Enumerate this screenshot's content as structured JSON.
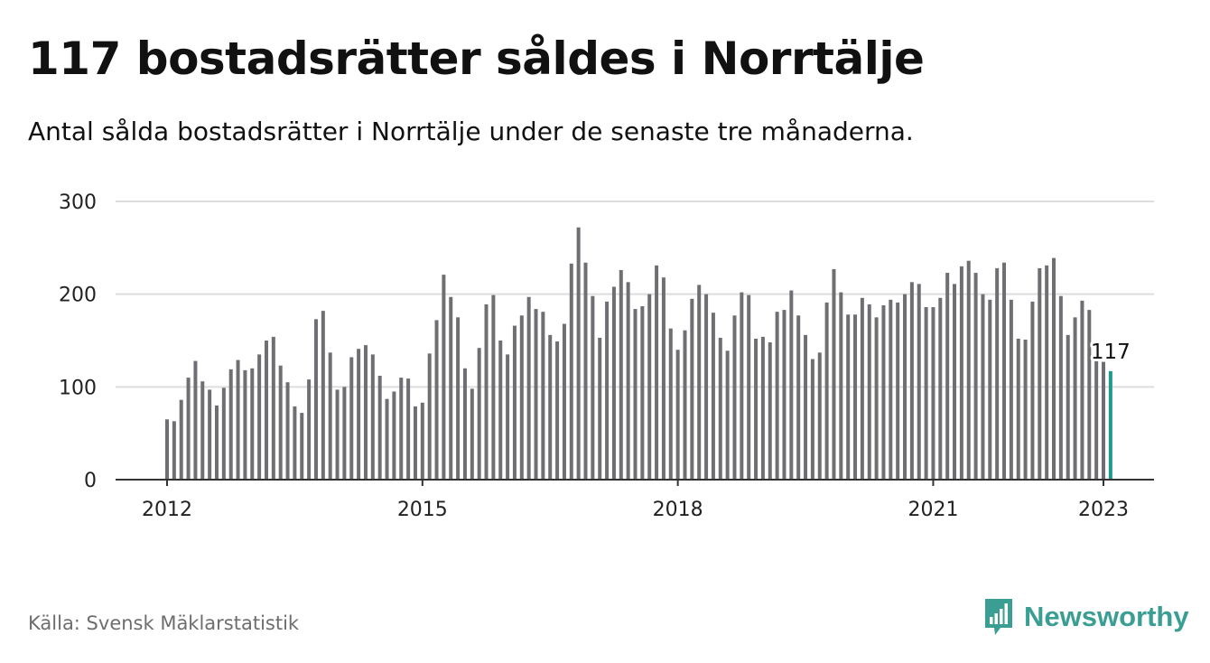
{
  "title": "117 bostadsrätter såldes i Norrtälje",
  "subtitle": "Antal sålda bostadsrätter i Norrtälje under de senaste tre månaderna.",
  "source": "Källa: Svensk Mäklarstatistik",
  "brand": {
    "name": "Newsworthy",
    "icon": "newsworthy-logo-icon"
  },
  "colors": {
    "bar": "#6e6e73",
    "highlight": "#1d9a8a",
    "grid": "#dddddd",
    "axis": "#333333",
    "brand": "#3a9e93"
  },
  "chart_data": {
    "type": "bar",
    "title": "117 bostadsrätter såldes i Norrtälje",
    "subtitle": "Antal sålda bostadsrätter i Norrtälje under de senaste tre månaderna.",
    "xlabel": "",
    "ylabel": "",
    "ylim": [
      0,
      300
    ],
    "yticks": [
      0,
      100,
      200,
      300
    ],
    "xticks": [
      "2012",
      "2015",
      "2018",
      "2021",
      "2023"
    ],
    "grid": true,
    "legend": "none",
    "start": "2012-01",
    "end": "2023-01",
    "values": [
      65,
      63,
      86,
      110,
      128,
      106,
      97,
      80,
      99,
      119,
      129,
      118,
      120,
      135,
      150,
      154,
      123,
      105,
      79,
      72,
      108,
      173,
      182,
      137,
      97,
      100,
      132,
      141,
      145,
      135,
      112,
      87,
      95,
      110,
      109,
      79,
      83,
      136,
      172,
      221,
      197,
      175,
      120,
      98,
      142,
      189,
      199,
      150,
      135,
      166,
      177,
      197,
      184,
      181,
      156,
      149,
      168,
      233,
      272,
      234,
      198,
      153,
      192,
      208,
      226,
      213,
      184,
      187,
      200,
      231,
      218,
      163,
      140,
      161,
      195,
      210,
      200,
      180,
      153,
      139,
      177,
      202,
      199,
      152,
      154,
      148,
      181,
      183,
      204,
      177,
      156,
      130,
      137,
      191,
      227,
      202,
      178,
      178,
      196,
      189,
      175,
      188,
      194,
      191,
      200,
      213,
      211,
      186,
      186,
      196,
      223,
      211,
      230,
      236,
      223,
      200,
      194,
      228,
      234,
      194,
      152,
      151,
      192,
      228,
      231,
      239,
      198,
      156,
      175,
      193,
      183,
      128,
      127,
      117
    ],
    "highlight_label": "117"
  }
}
